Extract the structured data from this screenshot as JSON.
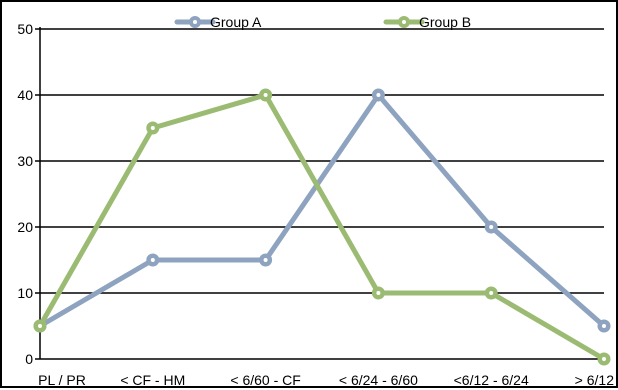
{
  "chart_data": {
    "type": "line",
    "categories": [
      "PL / PR",
      "< CF - HM",
      "< 6/60 - CF",
      "< 6/24 - 6/60",
      "<6/12 - 6/24",
      "> 6/12"
    ],
    "series": [
      {
        "name": "Group A",
        "values": [
          5,
          15,
          15,
          40,
          20,
          5
        ],
        "color": "#8EA3BF"
      },
      {
        "name": "Group B",
        "values": [
          5,
          35,
          40,
          10,
          10,
          0
        ],
        "color": "#9BBB73"
      }
    ],
    "ylim": [
      0,
      50
    ],
    "yticks": [
      0,
      10,
      20,
      30,
      40,
      50
    ],
    "ytick_labels": [
      "0",
      "10",
      "20",
      "30",
      "40",
      "50"
    ],
    "grid": true,
    "legend_position": "top-center",
    "title": "",
    "xlabel": "",
    "ylabel": ""
  }
}
